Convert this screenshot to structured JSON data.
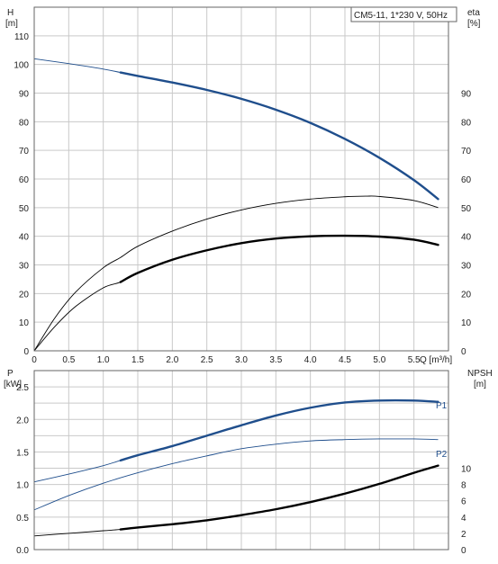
{
  "title": "CM5-11, 1*230 V, 50Hz",
  "chart_data": [
    {
      "type": "line",
      "panel": "top",
      "xlabel": "Q [m³/h]",
      "ylabel_left": {
        "name": "H",
        "unit": "[m]"
      },
      "ylabel_right": {
        "name": "eta",
        "unit": "[%]"
      },
      "xlim": [
        0,
        6.0
      ],
      "ylim": [
        0,
        120
      ],
      "x_ticks": [
        "0",
        "0.5",
        "1.0",
        "1.5",
        "2.0",
        "2.5",
        "3.0",
        "3.5",
        "4.0",
        "4.5",
        "5.0",
        "5.5"
      ],
      "y_ticks_left": [
        "0",
        "10",
        "20",
        "30",
        "40",
        "50",
        "60",
        "70",
        "80",
        "90",
        "100",
        "110"
      ],
      "y_ticks_right": [
        "0",
        "10",
        "20",
        "30",
        "40",
        "50",
        "60",
        "70",
        "80",
        "90"
      ],
      "grid": true,
      "series": [
        {
          "color": "#1f4e8c",
          "x": [
            0,
            0.5,
            1.0,
            1.25,
            1.5,
            2.0,
            2.5,
            3.0,
            3.5,
            4.0,
            4.5,
            5.0,
            5.5,
            5.85
          ],
          "y": [
            102,
            100.3,
            98.4,
            97.2,
            96,
            93.7,
            91.1,
            88.0,
            84.2,
            79.6,
            74.0,
            67.4,
            59.6,
            53
          ],
          "bold_from": 1.25
        },
        {
          "color": "#000000",
          "x": [
            0,
            0.3,
            0.6,
            1.0,
            1.25,
            1.5,
            2.0,
            2.5,
            3.0,
            3.5,
            4.0,
            4.5,
            4.8,
            5.0,
            5.5,
            5.85
          ],
          "y": [
            0,
            11.5,
            20.5,
            29,
            32.6,
            36.5,
            41.8,
            46.0,
            49.2,
            51.5,
            53.0,
            53.8,
            54.0,
            53.9,
            52.5,
            50
          ],
          "bold_from": null
        },
        {
          "color": "#000000",
          "x": [
            0,
            0.3,
            0.6,
            1.0,
            1.25,
            1.5,
            2.0,
            2.5,
            3.0,
            3.5,
            4.0,
            4.5,
            5.0,
            5.5,
            5.85
          ],
          "y": [
            0,
            8.5,
            15.5,
            22,
            24,
            27.2,
            31.8,
            35.1,
            37.6,
            39.2,
            40.0,
            40.2,
            39.9,
            38.8,
            37
          ],
          "bold_from": 1.25
        }
      ]
    },
    {
      "type": "line",
      "panel": "bottom",
      "ylabel_left": {
        "name": "P",
        "unit": "[kW]"
      },
      "ylabel_right": {
        "name": "NPSH",
        "unit": "[m]"
      },
      "xlim": [
        0,
        6.0
      ],
      "ylim": [
        0,
        2.75
      ],
      "y_ticks_left": [
        "0.0",
        "0.5",
        "1.0",
        "1.5",
        "2.0",
        "2.5"
      ],
      "y_ticks_right": [
        "0",
        "2",
        "4",
        "6",
        "8",
        "10"
      ],
      "grid": true,
      "series": [
        {
          "name": "P1",
          "color": "#1f4e8c",
          "x": [
            0,
            0.5,
            1.0,
            1.25,
            1.5,
            2.0,
            2.5,
            3.0,
            3.5,
            4.0,
            4.5,
            5.0,
            5.5,
            5.85
          ],
          "y": [
            1.04,
            1.16,
            1.29,
            1.37,
            1.45,
            1.59,
            1.75,
            1.91,
            2.06,
            2.18,
            2.26,
            2.29,
            2.29,
            2.27
          ],
          "bold_from": 1.25
        },
        {
          "name": "P2",
          "color": "#1f4e8c",
          "x": [
            0,
            0.5,
            1.0,
            1.5,
            2.0,
            2.5,
            3.0,
            3.5,
            4.0,
            4.5,
            5.0,
            5.5,
            5.85
          ],
          "y": [
            0.61,
            0.83,
            1.02,
            1.18,
            1.32,
            1.44,
            1.55,
            1.62,
            1.67,
            1.69,
            1.7,
            1.7,
            1.69
          ],
          "bold_from": null
        },
        {
          "color": "#000000",
          "x": [
            0,
            0.5,
            1.0,
            1.25,
            1.5,
            2.0,
            2.5,
            3.0,
            3.5,
            4.0,
            4.5,
            5.0,
            5.5,
            5.85
          ],
          "y": [
            0.21,
            0.25,
            0.29,
            0.31,
            0.34,
            0.39,
            0.45,
            0.53,
            0.62,
            0.73,
            0.86,
            1.01,
            1.18,
            1.29
          ],
          "bold_from": 1.25
        }
      ]
    }
  ]
}
